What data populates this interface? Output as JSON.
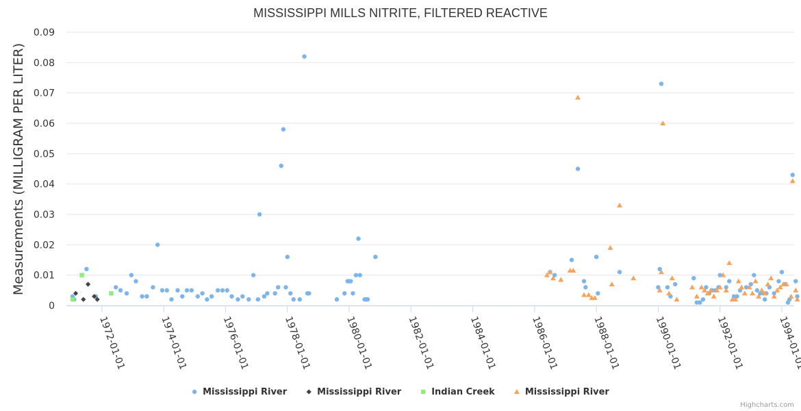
{
  "chart_data": {
    "type": "scatter",
    "title": "MISSISSIPPI MILLS NITRITE, FILTERED REACTIVE",
    "ylabel": "Measurements (MILLIGRAM PER LITER)",
    "xlabel": "",
    "ylim": [
      0,
      0.09
    ],
    "yticks": [
      0,
      0.01,
      0.02,
      0.03,
      0.04,
      0.05,
      0.06,
      0.07,
      0.08,
      0.09
    ],
    "ytick_labels": [
      "0",
      "0.01",
      "0.02",
      "0.03",
      "0.04",
      "0.05",
      "0.06",
      "0.07",
      "0.08",
      "0.09"
    ],
    "xlim": [
      1970.85,
      1994.4
    ],
    "xticks": [
      1972,
      1974,
      1976,
      1978,
      1980,
      1982,
      1984,
      1986,
      1988,
      1990,
      1992,
      1994
    ],
    "xtick_labels": [
      "1972-01-01",
      "1974-01-01",
      "1976-01-01",
      "1978-01-01",
      "1980-01-01",
      "1982-01-01",
      "1984-01-01",
      "1986-01-01",
      "1988-01-01",
      "1990-01-01",
      "1992-01-01",
      "1994-01-01"
    ],
    "grid": true,
    "legend_position": "bottom-center",
    "credits": "Highcharts.com",
    "series": [
      {
        "name": "Mississippi River",
        "marker": "circle",
        "color": "#7cb5ec",
        "points": [
          [
            1971.05,
            0.003
          ],
          [
            1971.1,
            0.002
          ],
          [
            1971.5,
            0.012
          ],
          [
            1971.8,
            0.003
          ],
          [
            1972.45,
            0.006
          ],
          [
            1972.6,
            0.005
          ],
          [
            1972.8,
            0.004
          ],
          [
            1972.95,
            0.01
          ],
          [
            1973.1,
            0.008
          ],
          [
            1973.3,
            0.003
          ],
          [
            1973.45,
            0.003
          ],
          [
            1973.65,
            0.006
          ],
          [
            1973.8,
            0.02
          ],
          [
            1973.95,
            0.005
          ],
          [
            1974.1,
            0.005
          ],
          [
            1974.25,
            0.002
          ],
          [
            1974.45,
            0.005
          ],
          [
            1974.6,
            0.003
          ],
          [
            1974.75,
            0.005
          ],
          [
            1974.9,
            0.005
          ],
          [
            1975.1,
            0.003
          ],
          [
            1975.25,
            0.004
          ],
          [
            1975.4,
            0.002
          ],
          [
            1975.55,
            0.003
          ],
          [
            1975.75,
            0.005
          ],
          [
            1975.9,
            0.005
          ],
          [
            1976.05,
            0.005
          ],
          [
            1976.2,
            0.003
          ],
          [
            1976.4,
            0.002
          ],
          [
            1976.55,
            0.003
          ],
          [
            1976.75,
            0.002
          ],
          [
            1976.9,
            0.01
          ],
          [
            1977.05,
            0.002
          ],
          [
            1977.1,
            0.03
          ],
          [
            1977.25,
            0.003
          ],
          [
            1977.35,
            0.004
          ],
          [
            1977.6,
            0.004
          ],
          [
            1977.7,
            0.006
          ],
          [
            1977.8,
            0.046
          ],
          [
            1977.87,
            0.058
          ],
          [
            1977.95,
            0.006
          ],
          [
            1978.0,
            0.016
          ],
          [
            1978.1,
            0.004
          ],
          [
            1978.2,
            0.002
          ],
          [
            1978.4,
            0.002
          ],
          [
            1978.55,
            0.082
          ],
          [
            1978.65,
            0.004
          ],
          [
            1978.7,
            0.004
          ],
          [
            1979.6,
            0.002
          ],
          [
            1979.85,
            0.004
          ],
          [
            1979.95,
            0.008
          ],
          [
            1980.0,
            0.008
          ],
          [
            1980.05,
            0.008
          ],
          [
            1980.12,
            0.004
          ],
          [
            1980.22,
            0.01
          ],
          [
            1980.3,
            0.022
          ],
          [
            1980.35,
            0.01
          ],
          [
            1980.5,
            0.002
          ],
          [
            1980.55,
            0.002
          ],
          [
            1980.6,
            0.002
          ],
          [
            1980.85,
            0.016
          ],
          [
            1986.5,
            0.011
          ],
          [
            1986.65,
            0.01
          ],
          [
            1987.2,
            0.015
          ],
          [
            1987.4,
            0.045
          ],
          [
            1987.6,
            0.008
          ],
          [
            1987.65,
            0.006
          ],
          [
            1988.0,
            0.016
          ],
          [
            1988.05,
            0.004
          ],
          [
            1988.75,
            0.011
          ],
          [
            1990.0,
            0.006
          ],
          [
            1990.05,
            0.012
          ],
          [
            1990.1,
            0.073
          ],
          [
            1990.3,
            0.006
          ],
          [
            1990.4,
            0.003
          ],
          [
            1990.55,
            0.007
          ],
          [
            1991.15,
            0.009
          ],
          [
            1991.25,
            0.001
          ],
          [
            1991.35,
            0.001
          ],
          [
            1991.45,
            0.002
          ],
          [
            1991.55,
            0.006
          ],
          [
            1991.65,
            0.004
          ],
          [
            1991.75,
            0.005
          ],
          [
            1991.85,
            0.005
          ],
          [
            1991.95,
            0.006
          ],
          [
            1992.0,
            0.01
          ],
          [
            1992.2,
            0.006
          ],
          [
            1992.3,
            0.008
          ],
          [
            1992.45,
            0.003
          ],
          [
            1992.55,
            0.003
          ],
          [
            1992.65,
            0.005
          ],
          [
            1992.85,
            0.006
          ],
          [
            1993.0,
            0.007
          ],
          [
            1993.1,
            0.01
          ],
          [
            1993.2,
            0.005
          ],
          [
            1993.3,
            0.004
          ],
          [
            1993.4,
            0.004
          ],
          [
            1993.45,
            0.002
          ],
          [
            1993.5,
            0.004
          ],
          [
            1993.6,
            0.006
          ],
          [
            1993.75,
            0.004
          ],
          [
            1993.9,
            0.008
          ],
          [
            1994.0,
            0.011
          ],
          [
            1994.1,
            0.007
          ],
          [
            1994.2,
            0.001
          ],
          [
            1994.25,
            0.002
          ],
          [
            1994.35,
            0.043
          ],
          [
            1994.45,
            0.008
          ],
          [
            1994.5,
            0.003
          ]
        ]
      },
      {
        "name": "Mississippi River",
        "marker": "diamond",
        "color": "#434348",
        "points": [
          [
            1971.15,
            0.004
          ],
          [
            1971.4,
            0.002
          ],
          [
            1971.55,
            0.007
          ],
          [
            1971.75,
            0.003
          ],
          [
            1971.85,
            0.002
          ]
        ]
      },
      {
        "name": "Indian Creek",
        "marker": "square",
        "color": "#90ed7d",
        "points": [
          [
            1971.05,
            0.002
          ],
          [
            1971.35,
            0.01
          ],
          [
            1972.3,
            0.004
          ]
        ]
      },
      {
        "name": "Mississippi River",
        "marker": "triangle",
        "color": "#f7a35c",
        "points": [
          [
            1986.4,
            0.01
          ],
          [
            1986.5,
            0.011
          ],
          [
            1986.6,
            0.009
          ],
          [
            1986.85,
            0.0085
          ],
          [
            1987.15,
            0.0115
          ],
          [
            1987.25,
            0.0115
          ],
          [
            1987.4,
            0.0685
          ],
          [
            1987.6,
            0.0035
          ],
          [
            1987.75,
            0.0035
          ],
          [
            1987.85,
            0.0025
          ],
          [
            1987.95,
            0.0025
          ],
          [
            1988.45,
            0.019
          ],
          [
            1988.5,
            0.007
          ],
          [
            1988.75,
            0.033
          ],
          [
            1989.2,
            0.009
          ],
          [
            1990.05,
            0.005
          ],
          [
            1990.1,
            0.011
          ],
          [
            1990.15,
            0.06
          ],
          [
            1990.35,
            0.004
          ],
          [
            1990.45,
            0.009
          ],
          [
            1990.6,
            0.002
          ],
          [
            1991.1,
            0.006
          ],
          [
            1991.25,
            0.003
          ],
          [
            1991.4,
            0.006
          ],
          [
            1991.5,
            0.005
          ],
          [
            1991.6,
            0.004
          ],
          [
            1991.7,
            0.005
          ],
          [
            1991.8,
            0.003
          ],
          [
            1991.9,
            0.005
          ],
          [
            1992.0,
            0.006
          ],
          [
            1992.1,
            0.01
          ],
          [
            1992.2,
            0.005
          ],
          [
            1992.3,
            0.014
          ],
          [
            1992.4,
            0.002
          ],
          [
            1992.5,
            0.002
          ],
          [
            1992.6,
            0.008
          ],
          [
            1992.7,
            0.006
          ],
          [
            1992.8,
            0.004
          ],
          [
            1992.95,
            0.006
          ],
          [
            1993.05,
            0.004
          ],
          [
            1993.15,
            0.008
          ],
          [
            1993.25,
            0.003
          ],
          [
            1993.35,
            0.005
          ],
          [
            1993.45,
            0.004
          ],
          [
            1993.55,
            0.007
          ],
          [
            1993.65,
            0.009
          ],
          [
            1993.75,
            0.003
          ],
          [
            1993.85,
            0.005
          ],
          [
            1993.95,
            0.006
          ],
          [
            1994.05,
            0.007
          ],
          [
            1994.15,
            0.007
          ],
          [
            1994.3,
            0.003
          ],
          [
            1994.35,
            0.041
          ],
          [
            1994.45,
            0.005
          ],
          [
            1994.5,
            0.002
          ]
        ]
      }
    ]
  }
}
